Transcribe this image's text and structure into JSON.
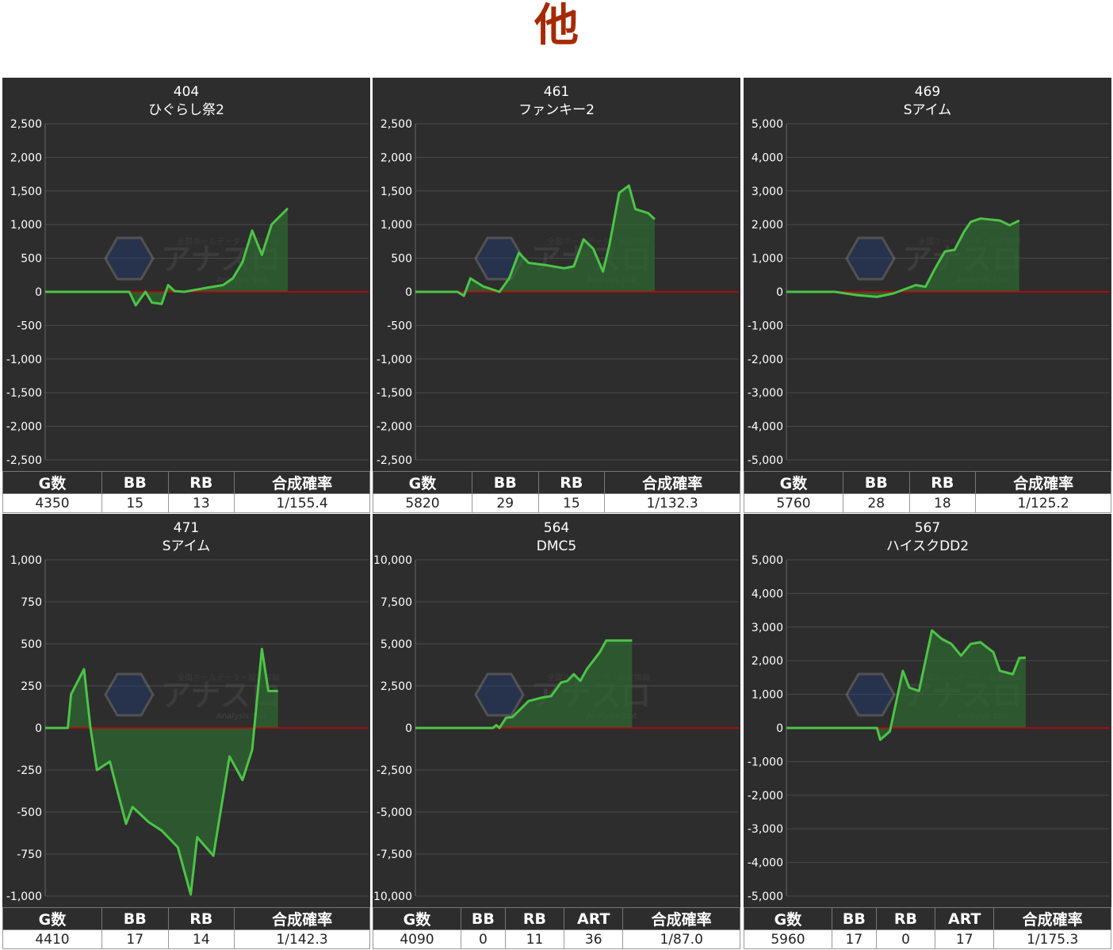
{
  "page": {
    "title": "他"
  },
  "colors": {
    "panel_bg": "#2d2d2d",
    "line": "#4cc447",
    "fill": "#2e6b30",
    "zero_line": "#d40000",
    "grid": "#4a4a4a",
    "axis_text": "#ffffff",
    "title": "#a52a00"
  },
  "watermark": {
    "brand": "アナスロ",
    "tagline": "全国ホールデータ・設定情報",
    "sub": "Analysis Slot"
  },
  "chart_data": [
    {
      "type": "area",
      "number": "404",
      "machine": "ひぐらし祭2",
      "ylim": [
        -2500,
        2500
      ],
      "yticks": [
        "2,500",
        "2,000",
        "1,500",
        "1,000",
        "500",
        "0",
        "-500",
        "-1,000",
        "-1,500",
        "-2,000",
        "-2,500"
      ],
      "series": [
        {
          "values": [
            [
              0,
              0
            ],
            [
              0.26,
              0
            ],
            [
              0.28,
              -200
            ],
            [
              0.31,
              0
            ],
            [
              0.33,
              -160
            ],
            [
              0.36,
              -180
            ],
            [
              0.38,
              100
            ],
            [
              0.4,
              10
            ],
            [
              0.43,
              0
            ],
            [
              0.5,
              60
            ],
            [
              0.55,
              100
            ],
            [
              0.58,
              200
            ],
            [
              0.61,
              440
            ],
            [
              0.64,
              910
            ],
            [
              0.67,
              550
            ],
            [
              0.7,
              1000
            ],
            [
              0.75,
              1240
            ],
            [
              0.85,
              1240
            ],
            [
              1,
              1240
            ]
          ]
        }
      ],
      "stats": {
        "headers": [
          "G数",
          "BB",
          "RB",
          "合成確率"
        ],
        "values": [
          "4350",
          "15",
          "13",
          "1/155.4"
        ]
      }
    },
    {
      "type": "area",
      "number": "461",
      "machine": "ファンキー2",
      "ylim": [
        -2500,
        2500
      ],
      "yticks": [
        "2,500",
        "2,000",
        "1,500",
        "1,000",
        "500",
        "0",
        "-500",
        "-1,000",
        "-1,500",
        "-2,000",
        "-2,500"
      ],
      "series": [
        {
          "values": [
            [
              0,
              0
            ],
            [
              0.13,
              0
            ],
            [
              0.15,
              -60
            ],
            [
              0.17,
              200
            ],
            [
              0.21,
              80
            ],
            [
              0.26,
              0
            ],
            [
              0.29,
              200
            ],
            [
              0.32,
              580
            ],
            [
              0.35,
              430
            ],
            [
              0.4,
              400
            ],
            [
              0.46,
              350
            ],
            [
              0.49,
              380
            ],
            [
              0.52,
              780
            ],
            [
              0.55,
              640
            ],
            [
              0.58,
              300
            ],
            [
              0.6,
              700
            ],
            [
              0.63,
              1470
            ],
            [
              0.66,
              1580
            ],
            [
              0.68,
              1230
            ],
            [
              0.72,
              1170
            ],
            [
              0.74,
              1080
            ],
            [
              0.76,
              1080
            ],
            [
              1,
              1080
            ]
          ]
        }
      ],
      "stats": {
        "headers": [
          "G数",
          "BB",
          "RB",
          "合成確率"
        ],
        "values": [
          "5820",
          "29",
          "15",
          "1/132.3"
        ]
      }
    },
    {
      "type": "area",
      "number": "469",
      "machine": "Sアイム",
      "ylim": [
        -5000,
        5000
      ],
      "yticks": [
        "5,000",
        "4,000",
        "3,000",
        "2,000",
        "1,000",
        "0",
        "-1,000",
        "-2,000",
        "-3,000",
        "-4,000",
        "-5,000"
      ],
      "series": [
        {
          "values": [
            [
              0,
              0
            ],
            [
              0.15,
              0
            ],
            [
              0.22,
              -100
            ],
            [
              0.28,
              -150
            ],
            [
              0.33,
              -50
            ],
            [
              0.4,
              200
            ],
            [
              0.43,
              150
            ],
            [
              0.46,
              700
            ],
            [
              0.49,
              1200
            ],
            [
              0.52,
              1250
            ],
            [
              0.55,
              1800
            ],
            [
              0.57,
              2080
            ],
            [
              0.6,
              2180
            ],
            [
              0.66,
              2120
            ],
            [
              0.69,
              1980
            ],
            [
              0.72,
              2120
            ],
            [
              0.76,
              1730
            ],
            [
              0.79,
              1480
            ],
            [
              0.84,
              1480
            ],
            [
              1,
              1480
            ]
          ]
        }
      ],
      "stats": {
        "headers": [
          "G数",
          "BB",
          "RB",
          "合成確率"
        ],
        "values": [
          "5760",
          "28",
          "18",
          "1/125.2"
        ]
      }
    },
    {
      "type": "area",
      "number": "471",
      "machine": "Sアイム",
      "ylim": [
        -1000,
        1000
      ],
      "yticks": [
        "1,000",
        "750",
        "500",
        "250",
        "0",
        "-250",
        "-500",
        "-750",
        "-1,000"
      ],
      "series": [
        {
          "values": [
            [
              0,
              0
            ],
            [
              0.07,
              0
            ],
            [
              0.08,
              200
            ],
            [
              0.12,
              350
            ],
            [
              0.14,
              0
            ],
            [
              0.16,
              -250
            ],
            [
              0.2,
              -200
            ],
            [
              0.22,
              -350
            ],
            [
              0.25,
              -570
            ],
            [
              0.27,
              -470
            ],
            [
              0.32,
              -560
            ],
            [
              0.36,
              -610
            ],
            [
              0.41,
              -710
            ],
            [
              0.45,
              -990
            ],
            [
              0.47,
              -650
            ],
            [
              0.52,
              -760
            ],
            [
              0.57,
              -170
            ],
            [
              0.61,
              -310
            ],
            [
              0.64,
              -130
            ],
            [
              0.67,
              470
            ],
            [
              0.69,
              220
            ],
            [
              0.72,
              220
            ],
            [
              1,
              220
            ]
          ]
        }
      ],
      "stats": {
        "headers": [
          "G数",
          "BB",
          "RB",
          "合成確率"
        ],
        "values": [
          "4410",
          "17",
          "14",
          "1/142.3"
        ]
      }
    },
    {
      "type": "area",
      "number": "564",
      "machine": "DMC5",
      "ylim": [
        -10000,
        10000
      ],
      "yticks": [
        "10,000",
        "7,500",
        "5,000",
        "2,500",
        "0",
        "-2,500",
        "-5,000",
        "-7,500",
        "-10,000"
      ],
      "series": [
        {
          "values": [
            [
              0,
              0
            ],
            [
              0.24,
              0
            ],
            [
              0.25,
              170
            ],
            [
              0.26,
              0
            ],
            [
              0.28,
              600
            ],
            [
              0.3,
              650
            ],
            [
              0.35,
              1600
            ],
            [
              0.39,
              1800
            ],
            [
              0.42,
              1900
            ],
            [
              0.45,
              2700
            ],
            [
              0.47,
              2800
            ],
            [
              0.49,
              3200
            ],
            [
              0.51,
              2800
            ],
            [
              0.53,
              3500
            ],
            [
              0.57,
              4500
            ],
            [
              0.59,
              5200
            ],
            [
              0.63,
              5200
            ],
            [
              0.67,
              5200
            ],
            [
              1,
              5200
            ]
          ]
        }
      ],
      "stats": {
        "headers": [
          "G数",
          "BB",
          "RB",
          "ART",
          "合成確率"
        ],
        "values": [
          "4090",
          "0",
          "11",
          "36",
          "1/87.0"
        ]
      }
    },
    {
      "type": "area",
      "number": "567",
      "machine": "ハイスクDD2",
      "ylim": [
        -5000,
        5000
      ],
      "yticks": [
        "5,000",
        "4,000",
        "3,000",
        "2,000",
        "1,000",
        "0",
        "-1,000",
        "-2,000",
        "-3,000",
        "-4,000",
        "-5,000"
      ],
      "series": [
        {
          "values": [
            [
              0,
              0
            ],
            [
              0.28,
              0
            ],
            [
              0.29,
              -350
            ],
            [
              0.32,
              -100
            ],
            [
              0.36,
              1700
            ],
            [
              0.38,
              1200
            ],
            [
              0.41,
              1100
            ],
            [
              0.45,
              2900
            ],
            [
              0.48,
              2650
            ],
            [
              0.51,
              2500
            ],
            [
              0.54,
              2150
            ],
            [
              0.57,
              2500
            ],
            [
              0.6,
              2550
            ],
            [
              0.64,
              2250
            ],
            [
              0.66,
              1700
            ],
            [
              0.7,
              1600
            ],
            [
              0.72,
              2080
            ],
            [
              0.74,
              2090
            ],
            [
              0.76,
              2090
            ],
            [
              1,
              2090
            ]
          ]
        }
      ],
      "stats": {
        "headers": [
          "G数",
          "BB",
          "RB",
          "ART",
          "合成確率"
        ],
        "values": [
          "5960",
          "17",
          "0",
          "17",
          "1/175.3"
        ]
      }
    }
  ]
}
